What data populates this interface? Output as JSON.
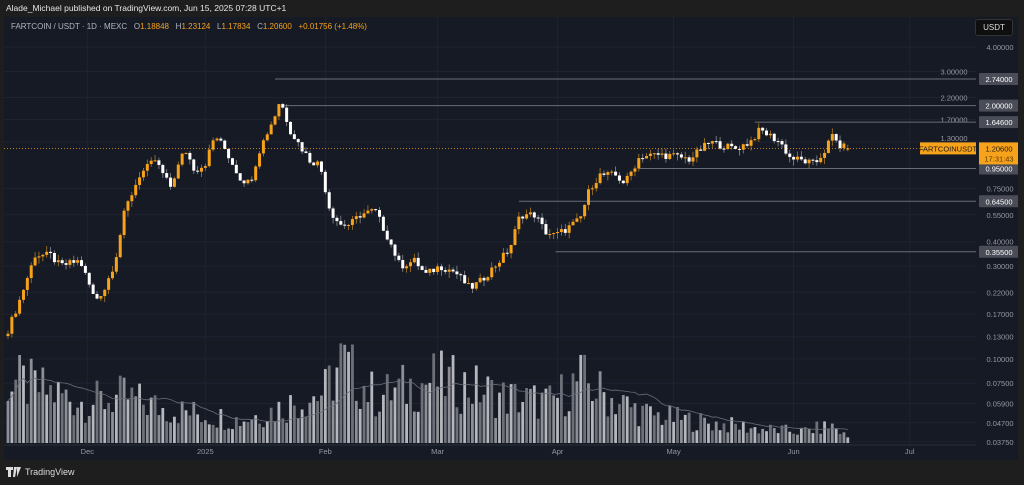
{
  "header": {
    "published": "Alade_Michael published on TradingView.com, Jun 15, 2025 07:28 UTC+1"
  },
  "legend": {
    "symbol": "FARTCOIN / USDT · 1D · MEXC",
    "o_label": "O",
    "o": "1.18848",
    "h_label": "H",
    "h": "1.23124",
    "l_label": "L",
    "l": "1.17834",
    "c_label": "C",
    "c": "1.20600",
    "change": "+0.01756 (+1.48%)"
  },
  "currency_button": "USDT",
  "footer": {
    "brand": "TradingView"
  },
  "colors": {
    "up": "#f7a21b",
    "down": "#ffffff",
    "bg": "#161a25",
    "level": "#6a6d78",
    "current": "#f7a21b"
  },
  "chart_data": {
    "type": "candlestick",
    "title": "FARTCOIN / USDT · 1D · MEXC",
    "yscale": "log",
    "ylim": [
      0.0375,
      4.0
    ],
    "y_ticks": [
      "4.00000",
      "3.00000",
      "2.20000",
      "1.70000",
      "1.30000",
      "0.75000",
      "0.55000",
      "0.40000",
      "0.30000",
      "0.22000",
      "0.17000",
      "0.13000",
      "0.10000",
      "0.07500",
      "0.05900",
      "0.04700",
      "0.03750"
    ],
    "x_ticks": [
      {
        "label": "Dec",
        "day": 20.5
      },
      {
        "label": "2025",
        "day": 51
      },
      {
        "label": "Feb",
        "day": 82
      },
      {
        "label": "Mar",
        "day": 111
      },
      {
        "label": "Apr",
        "day": 142
      },
      {
        "label": "May",
        "day": 172
      },
      {
        "label": "Jun",
        "day": 203
      },
      {
        "label": "Jul",
        "day": 233
      }
    ],
    "close_keypoints_day_price": [
      [
        0,
        0.141
      ],
      [
        3,
        0.2
      ],
      [
        7,
        0.342
      ],
      [
        11,
        0.34
      ],
      [
        13.5,
        0.3
      ],
      [
        18.6,
        0.32
      ],
      [
        22.5,
        0.2
      ],
      [
        25,
        0.23
      ],
      [
        27.7,
        0.32
      ],
      [
        30.2,
        0.58
      ],
      [
        34,
        0.88
      ],
      [
        38,
        1.05
      ],
      [
        40.6,
        0.85
      ],
      [
        41.9,
        0.76
      ],
      [
        45.7,
        1.2
      ],
      [
        48.3,
        0.93
      ],
      [
        50.9,
        1.0
      ],
      [
        53.5,
        1.41
      ],
      [
        56,
        1.2
      ],
      [
        60,
        0.85
      ],
      [
        62.5,
        0.8
      ],
      [
        65.1,
        1.2
      ],
      [
        69,
        1.79
      ],
      [
        70.3,
        2.15
      ],
      [
        72.9,
        1.5
      ],
      [
        75.4,
        1.25
      ],
      [
        78,
        1.05
      ],
      [
        80.6,
        1.0
      ],
      [
        83.2,
        0.58
      ],
      [
        85.8,
        0.49
      ],
      [
        88.4,
        0.49
      ],
      [
        91,
        0.55
      ],
      [
        94.8,
        0.58
      ],
      [
        98.7,
        0.4
      ],
      [
        101.3,
        0.3
      ],
      [
        105.2,
        0.32
      ],
      [
        107.8,
        0.27
      ],
      [
        111.6,
        0.3
      ],
      [
        115.5,
        0.28
      ],
      [
        119.4,
        0.23
      ],
      [
        122,
        0.25
      ],
      [
        125.8,
        0.3
      ],
      [
        129.7,
        0.37
      ],
      [
        132.3,
        0.55
      ],
      [
        136.2,
        0.55
      ],
      [
        138.8,
        0.45
      ],
      [
        141.3,
        0.43
      ],
      [
        143.9,
        0.46
      ],
      [
        147.8,
        0.52
      ],
      [
        150.4,
        0.76
      ],
      [
        153,
        0.88
      ],
      [
        156.8,
        0.88
      ],
      [
        159.4,
        0.8
      ],
      [
        163.3,
        1.1
      ],
      [
        168.5,
        1.12
      ],
      [
        172.4,
        1.1
      ],
      [
        176.2,
        1.06
      ],
      [
        178.8,
        1.18
      ],
      [
        181.4,
        1.3
      ],
      [
        185.3,
        1.24
      ],
      [
        187.9,
        1.2
      ],
      [
        191.7,
        1.3
      ],
      [
        194.3,
        1.5
      ],
      [
        196.9,
        1.4
      ],
      [
        199.5,
        1.3
      ],
      [
        202.1,
        1.08
      ],
      [
        204.7,
        1.05
      ],
      [
        208.5,
        1.0
      ],
      [
        211.1,
        1.18
      ],
      [
        212.9,
        1.4
      ],
      [
        215,
        1.24
      ],
      [
        217,
        1.206
      ]
    ],
    "volume_keypoints_day_value": [
      [
        0,
        55
      ],
      [
        10,
        45
      ],
      [
        20,
        35
      ],
      [
        30,
        40
      ],
      [
        40,
        30
      ],
      [
        50,
        25
      ],
      [
        60,
        20
      ],
      [
        70,
        30
      ],
      [
        82,
        45
      ],
      [
        86,
        70
      ],
      [
        95,
        40
      ],
      [
        110,
        55
      ],
      [
        118,
        50
      ],
      [
        128,
        40
      ],
      [
        140,
        35
      ],
      [
        148,
        55
      ],
      [
        155,
        40
      ],
      [
        165,
        25
      ],
      [
        180,
        18
      ],
      [
        195,
        12
      ],
      [
        205,
        10
      ],
      [
        213,
        15
      ],
      [
        217,
        5
      ]
    ],
    "levels": [
      {
        "price": 2.74,
        "label": "2.74000",
        "from_day": 69
      },
      {
        "price": 2.0,
        "label": "2.00000",
        "from_day": 71.5
      },
      {
        "price": 1.646,
        "label": "1.64600",
        "from_day": 193
      },
      {
        "price": 0.95,
        "label": "0.95000",
        "from_day": 163
      },
      {
        "price": 0.645,
        "label": "0.64500",
        "from_day": 132
      },
      {
        "price": 0.355,
        "label": "0.35500",
        "from_day": 141.5
      }
    ],
    "current": {
      "symbol": "FARTCOINUSDT",
      "price": 1.206,
      "price_label": "1.20600",
      "countdown": "17:31:43"
    }
  }
}
